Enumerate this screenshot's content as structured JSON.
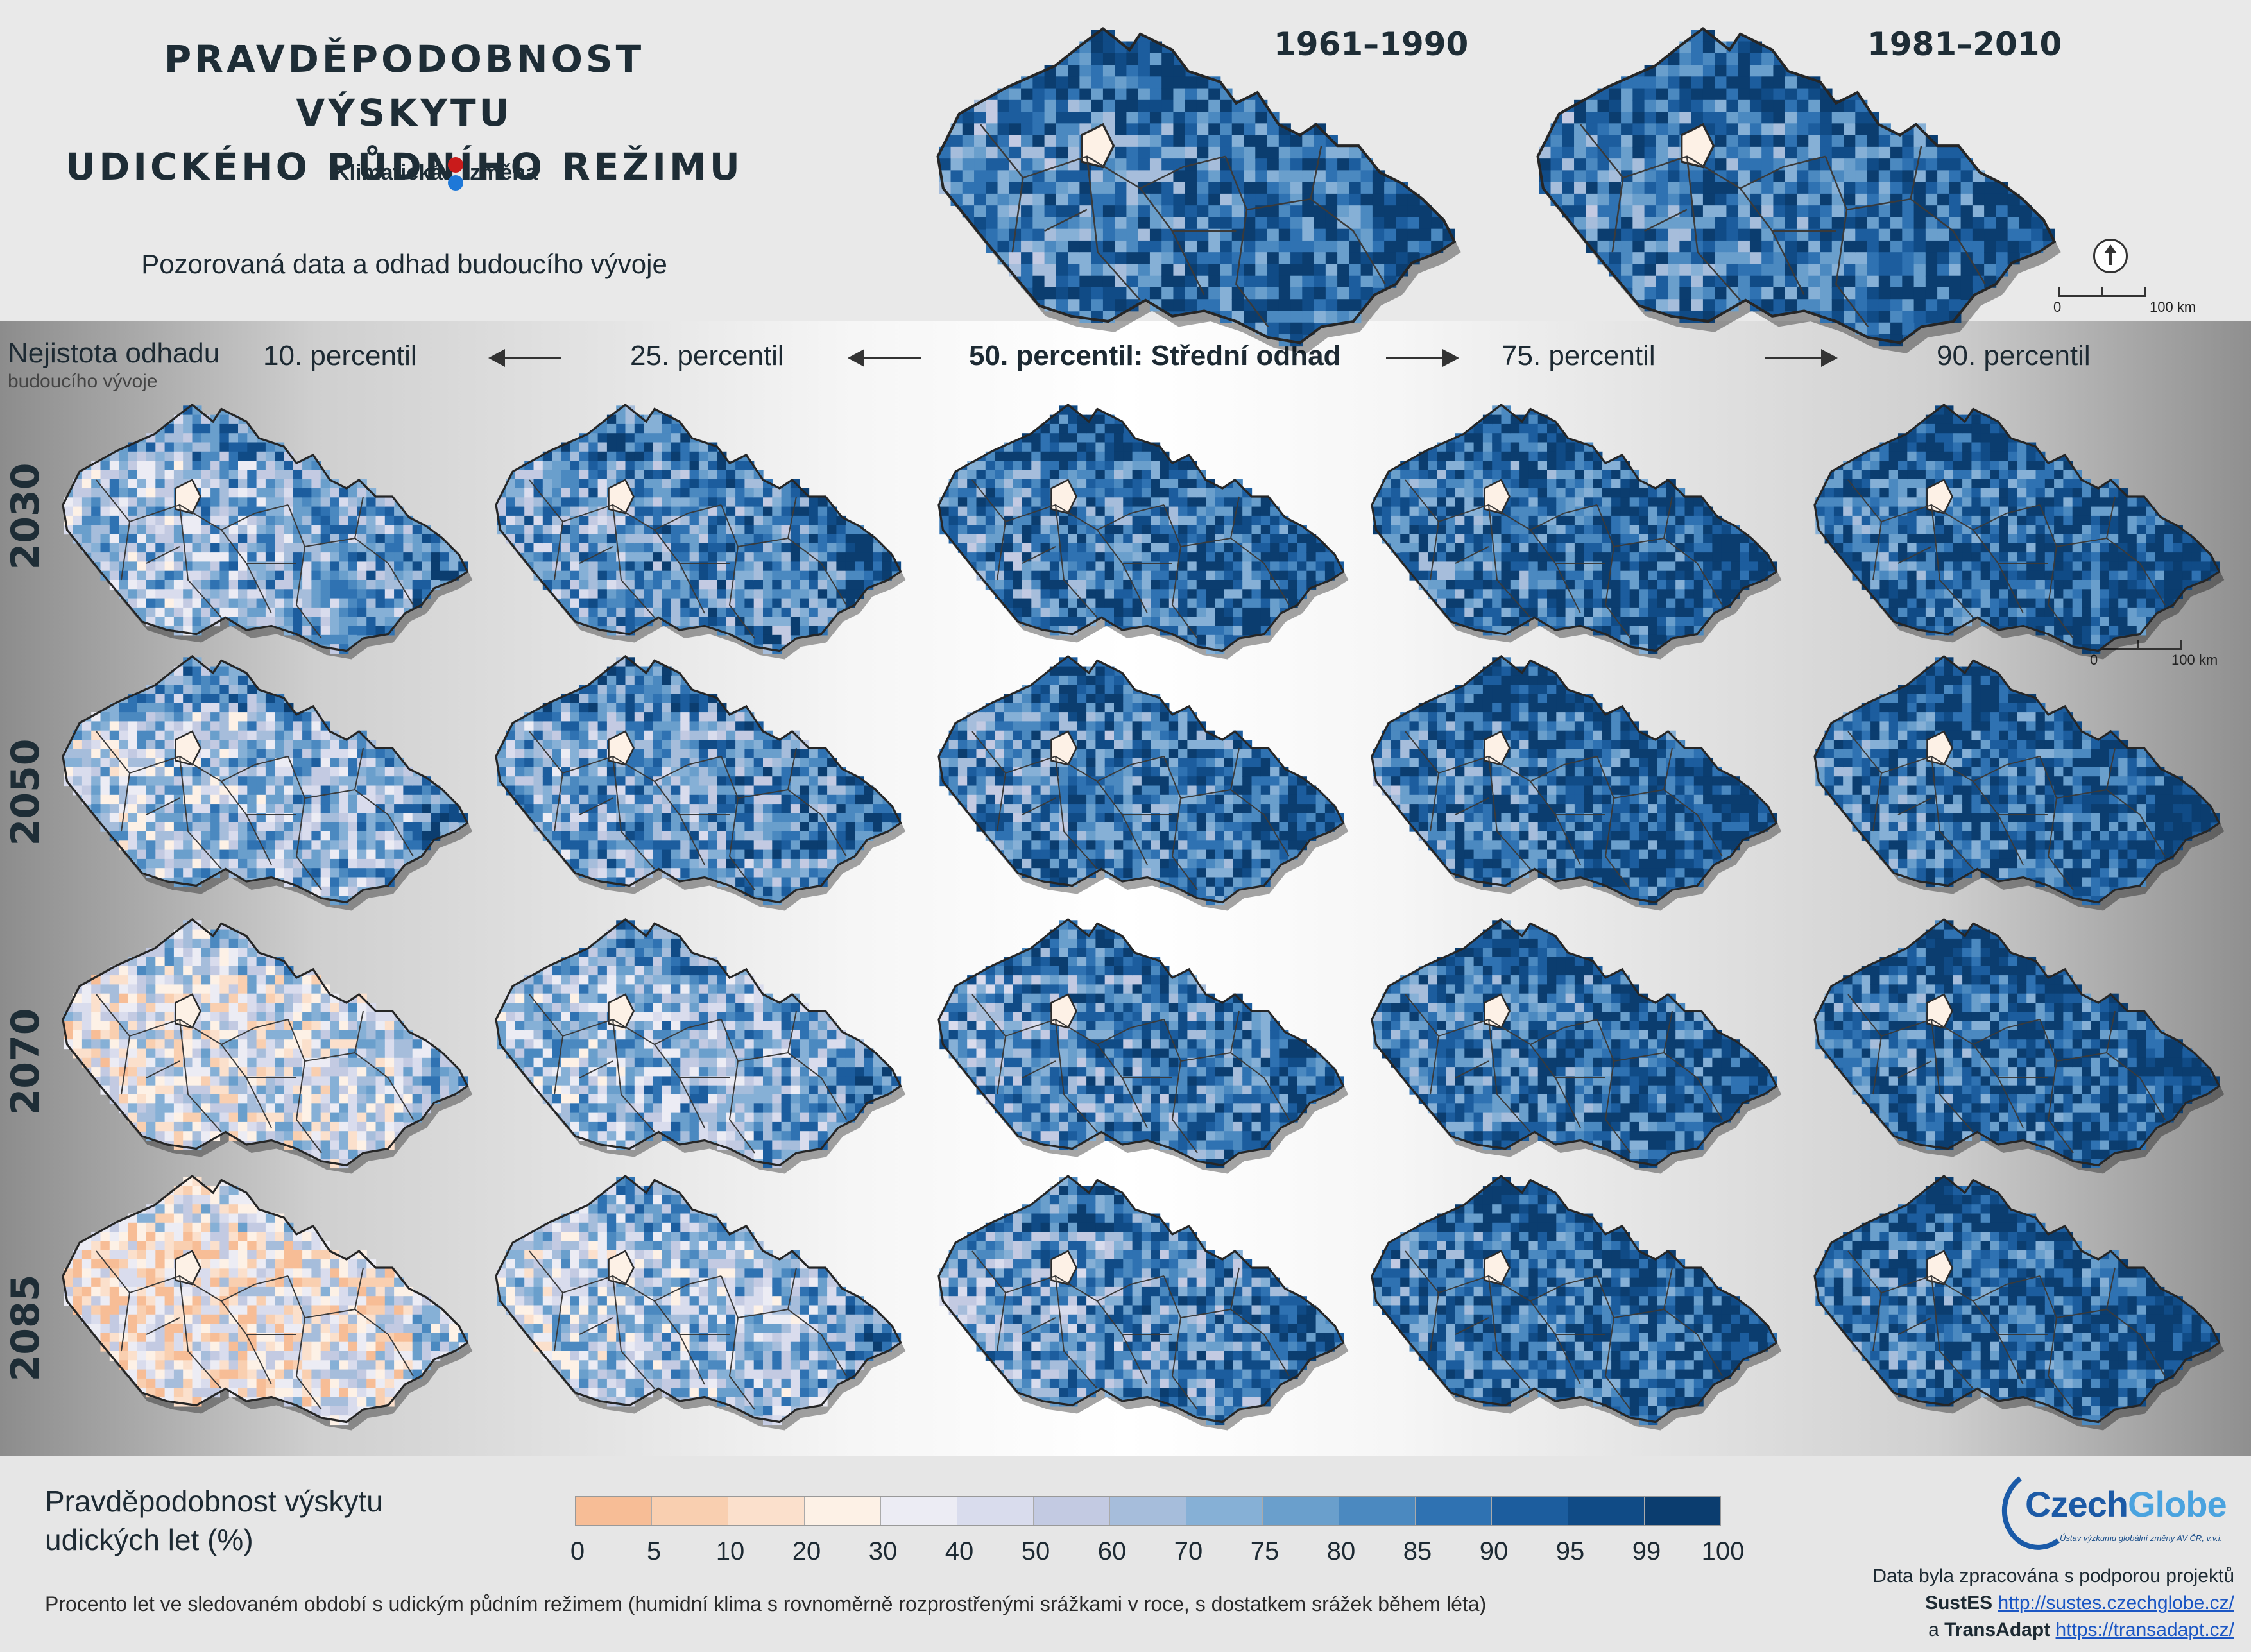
{
  "header": {
    "title": "PRAVDĚPODOBNOST VÝSKYTU\nUDICKÉHO PŮDNÍHO REŽIMU",
    "logo_left": "Klimatická",
    "logo_right": "změna",
    "subtitle": "Pozorovaná data a odhad budoucího vývoje",
    "observed_periods": [
      "1961–1990",
      "1981–2010"
    ]
  },
  "scale": {
    "zero": "0",
    "distance": "100 km"
  },
  "uncertainty": {
    "line1": "Nejistota odhadu",
    "line2": "budoucího vývoje"
  },
  "columns": [
    "10. percentil",
    "25. percentil",
    "50. percentil: Střední odhad",
    "75. percentil",
    "90. percentil"
  ],
  "rows": [
    "2030",
    "2050",
    "2070",
    "2085"
  ],
  "map_wetness": {
    "description_units": "mean probability level 0-1 (visual)",
    "observed": [
      0.8,
      0.82
    ],
    "grid": [
      [
        0.6,
        0.72,
        0.8,
        0.84,
        0.87
      ],
      [
        0.56,
        0.68,
        0.78,
        0.83,
        0.86
      ],
      [
        0.4,
        0.58,
        0.74,
        0.82,
        0.85
      ],
      [
        0.28,
        0.52,
        0.7,
        0.84,
        0.86
      ]
    ]
  },
  "legend": {
    "title": "Pravděpodobnost výskytu\nudických let (%)",
    "ticks": [
      "0",
      "5",
      "10",
      "20",
      "30",
      "40",
      "50",
      "60",
      "70",
      "75",
      "80",
      "85",
      "90",
      "95",
      "99",
      "100"
    ],
    "colors": [
      "#f7bd96",
      "#f9cfb0",
      "#fbe0cc",
      "#fdf1e6",
      "#ececf4",
      "#d9dced",
      "#c3cae2",
      "#a6bddb",
      "#86b0d6",
      "#6a9fcc",
      "#4b89c0",
      "#2f72b2",
      "#1c5d9e",
      "#104b86",
      "#0b3d6f"
    ]
  },
  "footnote": "Procento let ve sledovaném období s udickým půdním režimem (humidní klima s rovnoměrně rozprostřenými srážkami v roce, s dostatkem srážek během léta)",
  "credits": {
    "org_name_a": "Czech",
    "org_name_b": "Globe",
    "org_sub": "Ústav výzkumu globální změny AV ČR, v.v.i.",
    "line1": "Data byla zpracována s podporou projektů",
    "project1": "SustES",
    "url1": "http://sustes.czechglobe.cz/",
    "conj": "a",
    "project2": "TransAdapt",
    "url2": "https://transadapt.cz/"
  }
}
